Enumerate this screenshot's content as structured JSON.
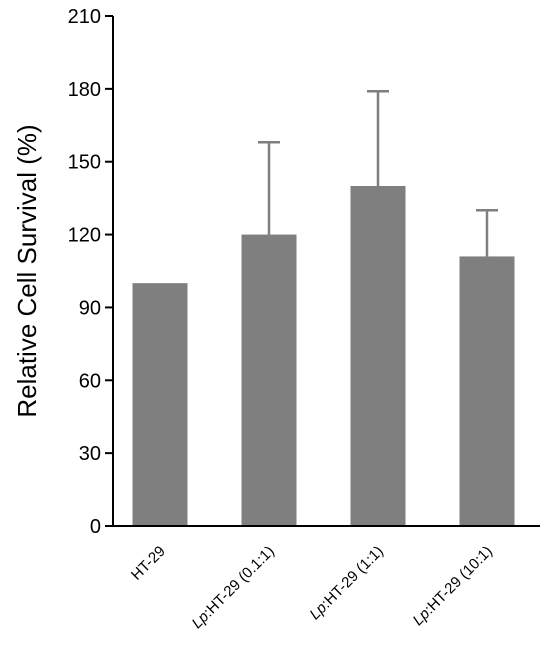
{
  "chart_data": {
    "type": "bar",
    "title": "",
    "xlabel": "",
    "ylabel": "Relative Cell Survival (%)",
    "ylim": [
      0,
      210
    ],
    "yticks": [
      0,
      30,
      60,
      90,
      120,
      150,
      180,
      210
    ],
    "grid": false,
    "categories": [
      {
        "prefix": "",
        "rest": "HT-29"
      },
      {
        "prefix": "Lp",
        "rest": ":HT-29 (0.1:1)"
      },
      {
        "prefix": "Lp",
        "rest": ":HT-29 (1:1)"
      },
      {
        "prefix": "Lp",
        "rest": ":HT-29 (10:1)"
      }
    ],
    "values": [
      100,
      120,
      140,
      111
    ],
    "error_upper": [
      0,
      38,
      39,
      19
    ],
    "colors": {
      "bar": "#7f7f7f",
      "error": "#7f7f7f",
      "axis": "#000000"
    }
  }
}
